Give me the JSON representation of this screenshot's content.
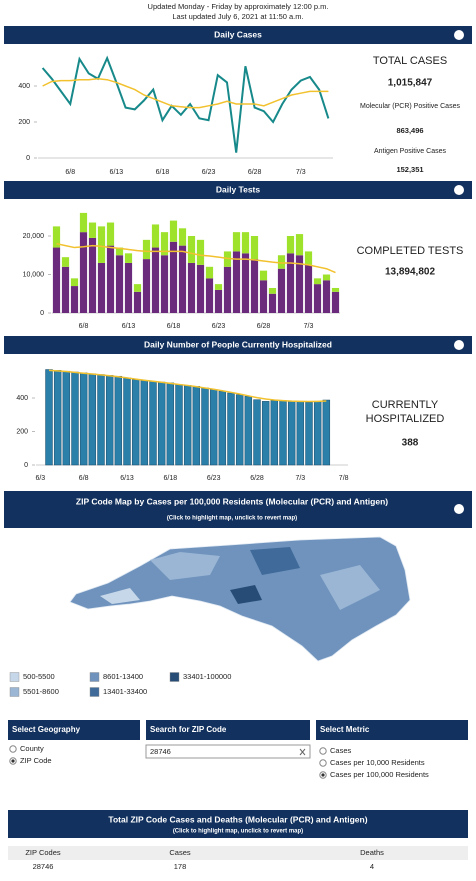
{
  "header": {
    "line1": "Updated Monday - Friday by approximately 12:00 p.m.",
    "line2": "Last updated July 6, 2021 at 11:50 a.m."
  },
  "chart_data": [
    {
      "type": "line",
      "title": "Daily Cases",
      "categories": [
        null,
        null,
        null,
        "6/8",
        null,
        null,
        null,
        null,
        "6/13",
        null,
        null,
        null,
        null,
        "6/18",
        null,
        null,
        null,
        null,
        "6/23",
        null,
        null,
        null,
        null,
        "6/28",
        null,
        null,
        null,
        null,
        "7/3",
        null,
        null,
        null
      ],
      "series": [
        {
          "color": "#17898a",
          "width": 2,
          "values": [
            500,
            440,
            370,
            300,
            550,
            470,
            440,
            555,
            420,
            280,
            270,
            320,
            380,
            210,
            290,
            240,
            300,
            220,
            210,
            460,
            420,
            30,
            510,
            280,
            260,
            200,
            300,
            380,
            430,
            450,
            380,
            220
          ]
        },
        {
          "color": "#f2c12e",
          "width": 1.5,
          "values": [
            400,
            425,
            430,
            430,
            435,
            435,
            440,
            435,
            420,
            400,
            380,
            350,
            330,
            310,
            290,
            285,
            280,
            280,
            290,
            300,
            315,
            300,
            300,
            300,
            290,
            310,
            330,
            350,
            360,
            370,
            370,
            370
          ]
        }
      ],
      "ylim": [
        0,
        600
      ],
      "yticks": [
        0,
        200,
        400
      ]
    },
    {
      "type": "bar",
      "title": "Daily Tests",
      "categories": [
        null,
        null,
        null,
        "6/8",
        null,
        null,
        null,
        null,
        "6/13",
        null,
        null,
        null,
        null,
        "6/18",
        null,
        null,
        null,
        null,
        "6/23",
        null,
        null,
        null,
        null,
        "6/28",
        null,
        null,
        null,
        null,
        "7/3",
        null,
        null,
        null
      ],
      "series": [
        {
          "color": "#6b2a7b",
          "values": [
            17000,
            12000,
            7000,
            21000,
            19500,
            13000,
            17500,
            15000,
            13000,
            5500,
            14000,
            17000,
            15000,
            18500,
            17500,
            13000,
            12500,
            9000,
            6000,
            12000,
            16000,
            15500,
            14000,
            8500,
            5000,
            11500,
            15500,
            15000,
            12500,
            7500,
            8500,
            5500
          ]
        },
        {
          "color": "#9fe22c",
          "values": [
            5500,
            2500,
            2000,
            5000,
            4000,
            9500,
            6000,
            2000,
            2500,
            2000,
            5000,
            6000,
            6000,
            5500,
            4500,
            7000,
            6500,
            3000,
            1500,
            4000,
            5000,
            5500,
            6000,
            2500,
            1500,
            3500,
            4500,
            5500,
            3500,
            1500,
            1500,
            1000
          ]
        },
        {
          "type": "line",
          "color": "#f2c12e",
          "width": 1.5,
          "values": [
            18000,
            17500,
            17000,
            17200,
            17500,
            17300,
            17000,
            16800,
            16500,
            16200,
            16000,
            16000,
            16000,
            16000,
            16000,
            15500,
            15000,
            14800,
            14500,
            14200,
            14000,
            14000,
            13800,
            13500,
            13200,
            13000,
            13000,
            12800,
            12500,
            12000,
            11500,
            10500
          ]
        }
      ],
      "ylim": [
        0,
        28000
      ],
      "yticks": [
        0,
        {
          "value": 10000,
          "label": "10,000"
        },
        {
          "value": 20000,
          "label": "20,000"
        }
      ]
    },
    {
      "type": "bar",
      "title": "Daily Number of People Currently Hospitalized",
      "categories": [
        "6/3",
        null,
        null,
        null,
        null,
        "6/8",
        null,
        null,
        null,
        null,
        "6/13",
        null,
        null,
        null,
        null,
        "6/18",
        null,
        null,
        null,
        null,
        "6/23",
        null,
        null,
        null,
        null,
        "6/28",
        null,
        null,
        null,
        null,
        "7/3",
        null,
        null,
        null,
        null,
        "7/8"
      ],
      "series": [
        {
          "color": "#2b80aa",
          "stroke": "#1b4a66",
          "values": [
            null,
            570,
            565,
            560,
            555,
            550,
            545,
            540,
            535,
            530,
            520,
            510,
            505,
            500,
            495,
            490,
            480,
            475,
            470,
            460,
            450,
            440,
            430,
            420,
            410,
            390,
            380,
            385,
            385,
            380,
            380,
            375,
            380,
            388,
            null,
            null
          ]
        },
        {
          "type": "line",
          "color": "#f2c12e",
          "width": 1.5,
          "values": [
            null,
            565,
            562,
            558,
            553,
            548,
            543,
            538,
            533,
            527,
            520,
            513,
            506,
            500,
            494,
            487,
            481,
            475,
            468,
            460,
            452,
            443,
            434,
            424,
            413,
            402,
            394,
            388,
            384,
            381,
            380,
            379,
            380,
            382,
            null,
            null
          ]
        }
      ],
      "ylim": [
        0,
        600
      ],
      "yticks": [
        0,
        200,
        400
      ]
    }
  ],
  "panels": {
    "total_cases_label": "TOTAL CASES",
    "total_cases": "1,015,847",
    "pcr_label": "Molecular (PCR) Positive Cases",
    "pcr": "863,496",
    "antigen_label": "Antigen Positive Cases",
    "antigen": "152,351",
    "tests_label": "COMPLETED TESTS",
    "tests": "13,894,802",
    "hosp_label": "CURRENTLY HOSPITALIZED",
    "hosp": "388"
  },
  "map": {
    "title": "ZIP Code Map by Cases per 100,000 Residents (Molecular (PCR) and Antigen)",
    "subtitle": "(Click to highlight map, unclick to revert map)",
    "legend": [
      {
        "label": "500-5500",
        "color": "#c6d7e9"
      },
      {
        "label": "5501-8600",
        "color": "#9ab6d4"
      },
      {
        "label": "8601-13400",
        "color": "#6f93bd"
      },
      {
        "label": "13401-33400",
        "color": "#3f6a99"
      },
      {
        "label": "33401-100000",
        "color": "#274d77"
      }
    ]
  },
  "controls": {
    "geography": {
      "title": "Select Geography",
      "options": [
        {
          "label": "County",
          "selected": false
        },
        {
          "label": "ZIP Code",
          "selected": true
        }
      ]
    },
    "search": {
      "title": "Search for ZIP Code",
      "value": "28746"
    },
    "metric": {
      "title": "Select Metric",
      "options": [
        {
          "label": "Cases",
          "selected": false
        },
        {
          "label": "Cases per 10,000 Residents",
          "selected": false
        },
        {
          "label": "Cases per 100,000 Residents",
          "selected": true
        }
      ]
    }
  },
  "table": {
    "title": "Total ZIP Code Cases and Deaths (Molecular (PCR) and Antigen)",
    "subtitle": "(Click to highlight map, unclick to revert map)",
    "columns": [
      "ZIP Codes",
      "Cases",
      "Deaths"
    ],
    "rows": [
      [
        "28746",
        178,
        4
      ]
    ]
  }
}
